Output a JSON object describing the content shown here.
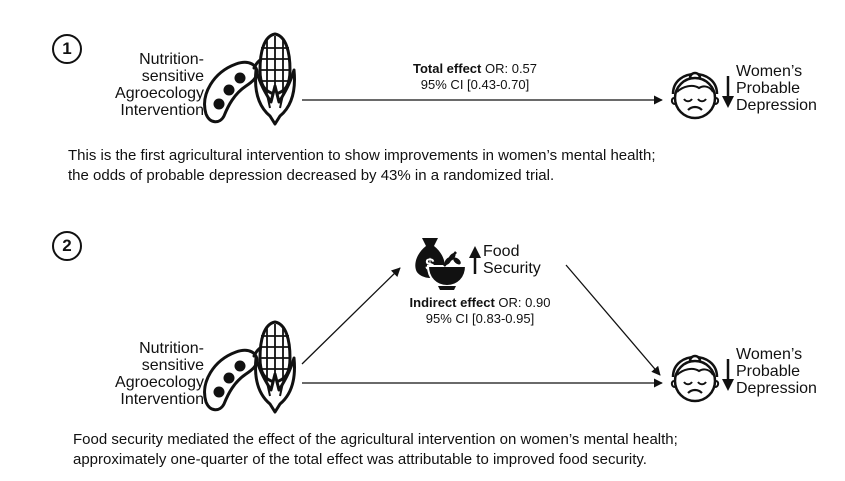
{
  "panel1": {
    "badge": "1",
    "intervention_lines": [
      "Nutrition-",
      "sensitive",
      "Agroecology",
      "Intervention"
    ],
    "effect_label": "Total effect",
    "effect_or": " OR: 0.57",
    "effect_ci": "95% CI [0.43-0.70]",
    "outcome_lines": [
      "Women’s",
      "Probable",
      "Depression"
    ],
    "caption_lines": [
      "This is the first agricultural intervention to show improvements in women’s mental health;",
      "the odds of probable depression decreased by 43% in a randomized trial."
    ]
  },
  "panel2": {
    "badge": "2",
    "intervention_lines": [
      "Nutrition-",
      "sensitive",
      "Agroecology",
      "Intervention"
    ],
    "mediator_lines": [
      "Food",
      "Security"
    ],
    "money_symbol": "$",
    "effect_label": "Indirect effect",
    "effect_or": " OR: 0.90",
    "effect_ci": "95% CI [0.83-0.95]",
    "outcome_lines": [
      "Women’s",
      "Probable",
      "Depression"
    ],
    "caption_lines": [
      "Food security mediated the effect of the agricultural intervention on women’s mental health;",
      "approximately one-quarter of the total effect was attributable to improved food security."
    ]
  },
  "icons": [
    "pea-pod-icon",
    "corn-icon",
    "sad-woman-face-icon",
    "money-bag-icon",
    "grain-bowl-icon",
    "arrow-down-icon",
    "arrow-up-icon"
  ]
}
